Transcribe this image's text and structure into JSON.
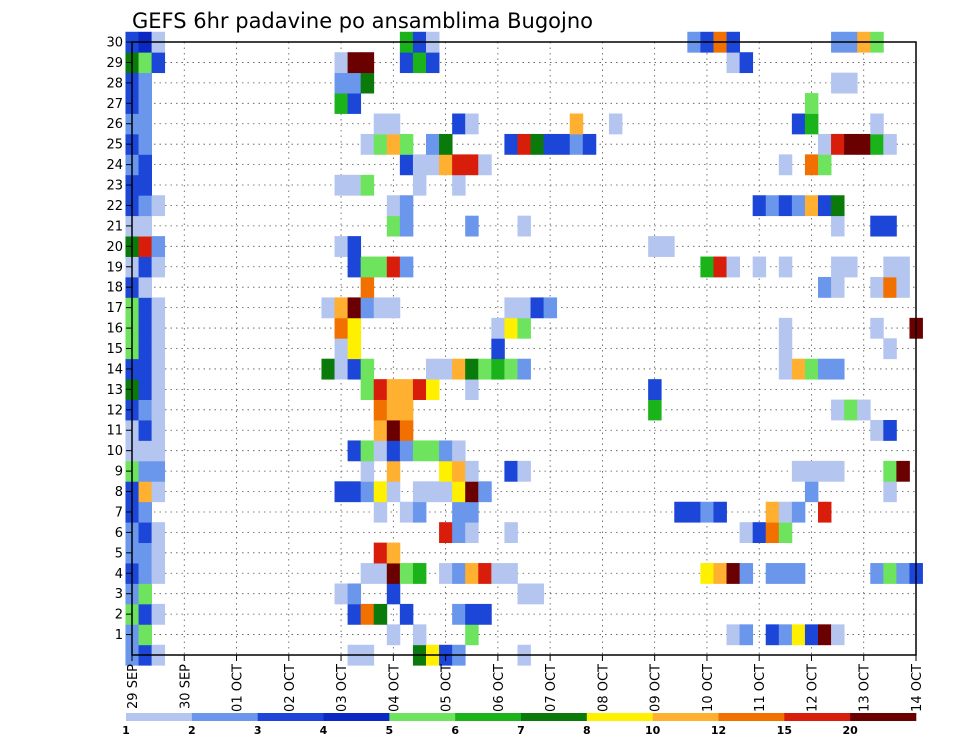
{
  "chart_data": {
    "type": "heatmap",
    "title": "GEFS 6hr padavine po ansamblima Bugojno",
    "xlabel": "",
    "ylabel": "",
    "x_ticks": [
      "29 SEP",
      "30 SEP",
      "01 OCT",
      "02 OCT",
      "03 OCT",
      "04 OCT",
      "05 OCT",
      "06 OCT",
      "07 OCT",
      "08 OCT",
      "09 OCT",
      "10 OCT",
      "11 OCT",
      "12 OCT",
      "13 OCT",
      "14 OCT"
    ],
    "y_ticks": [
      1,
      2,
      3,
      4,
      5,
      6,
      7,
      8,
      9,
      10,
      11,
      12,
      13,
      14,
      15,
      16,
      17,
      18,
      19,
      20,
      21,
      22,
      23,
      24,
      25,
      26,
      27,
      28,
      29,
      30
    ],
    "time_step_hours": 6,
    "xlim_steps": [
      0,
      60
    ],
    "ylim": [
      0,
      30
    ],
    "grid": "dotted",
    "legend_position": "bottom",
    "legend": {
      "labels": [
        "1",
        "2",
        "3",
        "4",
        "5",
        "6",
        "7",
        "8",
        "10",
        "12",
        "15",
        "20"
      ],
      "colors": [
        "#b4c6f0",
        "#6a96ec",
        "#1c46d8",
        "#0a28c4",
        "#6ee45e",
        "#1ab41a",
        "#0a7a0a",
        "#fff000",
        "#ffb030",
        "#f27000",
        "#d81e0a",
        "#6a0000"
      ]
    },
    "cell_values": {
      "30": [
        [
          0,
          3
        ],
        [
          1,
          4
        ],
        [
          2,
          1
        ],
        [
          21,
          6
        ],
        [
          22,
          3
        ],
        [
          23,
          1
        ],
        [
          43,
          2
        ],
        [
          44,
          3
        ],
        [
          45,
          12
        ],
        [
          46,
          3
        ],
        [
          54,
          2
        ],
        [
          55,
          2
        ],
        [
          56,
          10
        ],
        [
          57,
          5
        ]
      ],
      "29": [
        [
          0,
          7
        ],
        [
          1,
          5
        ],
        [
          2,
          3
        ],
        [
          16,
          1
        ],
        [
          17,
          20
        ],
        [
          18,
          20
        ],
        [
          21,
          3
        ],
        [
          22,
          6
        ],
        [
          23,
          3
        ],
        [
          46,
          1
        ],
        [
          47,
          3
        ]
      ],
      "28": [
        [
          0,
          3
        ],
        [
          1,
          2
        ],
        [
          16,
          2
        ],
        [
          17,
          2
        ],
        [
          18,
          7
        ],
        [
          54,
          1
        ],
        [
          55,
          1
        ]
      ],
      "27": [
        [
          0,
          3
        ],
        [
          1,
          2
        ],
        [
          16,
          6
        ],
        [
          17,
          3
        ],
        [
          52,
          5
        ]
      ],
      "26": [
        [
          0,
          2
        ],
        [
          1,
          2
        ],
        [
          19,
          1
        ],
        [
          20,
          1
        ],
        [
          25,
          3
        ],
        [
          26,
          1
        ],
        [
          34,
          10
        ],
        [
          37,
          1
        ],
        [
          51,
          3
        ],
        [
          52,
          6
        ],
        [
          57,
          1
        ]
      ],
      "25": [
        [
          0,
          3
        ],
        [
          1,
          2
        ],
        [
          18,
          1
        ],
        [
          19,
          5
        ],
        [
          20,
          10
        ],
        [
          21,
          5
        ],
        [
          23,
          2
        ],
        [
          24,
          7
        ],
        [
          29,
          3
        ],
        [
          30,
          15
        ],
        [
          31,
          7
        ],
        [
          32,
          3
        ],
        [
          33,
          3
        ],
        [
          34,
          2
        ],
        [
          35,
          3
        ],
        [
          53,
          1
        ],
        [
          54,
          15
        ],
        [
          55,
          20
        ],
        [
          56,
          20
        ],
        [
          57,
          6
        ],
        [
          58,
          1
        ]
      ],
      "24": [
        [
          0,
          2
        ],
        [
          1,
          3
        ],
        [
          21,
          3
        ],
        [
          22,
          1
        ],
        [
          23,
          1
        ],
        [
          24,
          10
        ],
        [
          25,
          15
        ],
        [
          26,
          15
        ],
        [
          27,
          1
        ],
        [
          50,
          1
        ],
        [
          52,
          12
        ],
        [
          53,
          5
        ]
      ],
      "23": [
        [
          0,
          3
        ],
        [
          1,
          3
        ],
        [
          16,
          1
        ],
        [
          17,
          1
        ],
        [
          18,
          5
        ],
        [
          22,
          1
        ],
        [
          25,
          1
        ]
      ],
      "22": [
        [
          0,
          3
        ],
        [
          1,
          2
        ],
        [
          2,
          1
        ],
        [
          20,
          1
        ],
        [
          21,
          2
        ],
        [
          48,
          3
        ],
        [
          49,
          2
        ],
        [
          50,
          3
        ],
        [
          51,
          2
        ],
        [
          52,
          10
        ],
        [
          53,
          3
        ],
        [
          54,
          7
        ]
      ],
      "21": [
        [
          0,
          1
        ],
        [
          1,
          1
        ],
        [
          20,
          5
        ],
        [
          21,
          2
        ],
        [
          26,
          2
        ],
        [
          30,
          1
        ],
        [
          54,
          1
        ],
        [
          57,
          3
        ],
        [
          58,
          3
        ]
      ],
      "20": [
        [
          0,
          7
        ],
        [
          1,
          15
        ],
        [
          2,
          2
        ],
        [
          16,
          1
        ],
        [
          17,
          3
        ],
        [
          40,
          1
        ],
        [
          41,
          1
        ]
      ],
      "19": [
        [
          0,
          1
        ],
        [
          1,
          3
        ],
        [
          2,
          1
        ],
        [
          17,
          3
        ],
        [
          18,
          5
        ],
        [
          19,
          5
        ],
        [
          20,
          15
        ],
        [
          21,
          2
        ],
        [
          44,
          6
        ],
        [
          45,
          15
        ],
        [
          46,
          1
        ],
        [
          48,
          1
        ],
        [
          50,
          1
        ],
        [
          54,
          1
        ],
        [
          55,
          1
        ],
        [
          58,
          1
        ],
        [
          59,
          1
        ]
      ],
      "18": [
        [
          0,
          3
        ],
        [
          1,
          1
        ],
        [
          18,
          12
        ],
        [
          53,
          2
        ],
        [
          54,
          1
        ],
        [
          57,
          1
        ],
        [
          58,
          12
        ],
        [
          59,
          1
        ]
      ],
      "17": [
        [
          0,
          5
        ],
        [
          1,
          3
        ],
        [
          2,
          1
        ],
        [
          15,
          1
        ],
        [
          16,
          10
        ],
        [
          17,
          20
        ],
        [
          18,
          2
        ],
        [
          19,
          1
        ],
        [
          20,
          1
        ],
        [
          29,
          1
        ],
        [
          30,
          1
        ],
        [
          31,
          3
        ],
        [
          32,
          2
        ]
      ],
      "16": [
        [
          0,
          5
        ],
        [
          1,
          3
        ],
        [
          2,
          1
        ],
        [
          16,
          12
        ],
        [
          17,
          8
        ],
        [
          28,
          1
        ],
        [
          29,
          8
        ],
        [
          30,
          5
        ],
        [
          50,
          1
        ],
        [
          57,
          1
        ],
        [
          60,
          20
        ]
      ],
      "15": [
        [
          0,
          5
        ],
        [
          1,
          3
        ],
        [
          2,
          1
        ],
        [
          16,
          1
        ],
        [
          17,
          8
        ],
        [
          28,
          3
        ],
        [
          50,
          1
        ],
        [
          58,
          1
        ]
      ],
      "14": [
        [
          0,
          3
        ],
        [
          1,
          3
        ],
        [
          2,
          1
        ],
        [
          15,
          7
        ],
        [
          16,
          1
        ],
        [
          17,
          3
        ],
        [
          18,
          5
        ],
        [
          23,
          1
        ],
        [
          24,
          1
        ],
        [
          25,
          10
        ],
        [
          26,
          7
        ],
        [
          27,
          5
        ],
        [
          28,
          6
        ],
        [
          29,
          5
        ],
        [
          30,
          2
        ],
        [
          50,
          1
        ],
        [
          51,
          10
        ],
        [
          52,
          5
        ],
        [
          53,
          2
        ],
        [
          54,
          2
        ]
      ],
      "13": [
        [
          0,
          7
        ],
        [
          1,
          3
        ],
        [
          2,
          1
        ],
        [
          18,
          5
        ],
        [
          19,
          15
        ],
        [
          20,
          10
        ],
        [
          21,
          10
        ],
        [
          22,
          15
        ],
        [
          23,
          8
        ],
        [
          26,
          1
        ],
        [
          40,
          3
        ]
      ],
      "12": [
        [
          0,
          3
        ],
        [
          1,
          2
        ],
        [
          2,
          1
        ],
        [
          19,
          12
        ],
        [
          20,
          10
        ],
        [
          21,
          10
        ],
        [
          40,
          6
        ],
        [
          54,
          1
        ],
        [
          55,
          5
        ],
        [
          56,
          1
        ]
      ],
      "11": [
        [
          0,
          1
        ],
        [
          1,
          3
        ],
        [
          2,
          1
        ],
        [
          19,
          10
        ],
        [
          20,
          20
        ],
        [
          21,
          12
        ],
        [
          57,
          1
        ],
        [
          58,
          3
        ]
      ],
      "10": [
        [
          0,
          1
        ],
        [
          1,
          1
        ],
        [
          2,
          1
        ],
        [
          17,
          3
        ],
        [
          18,
          5
        ],
        [
          19,
          1
        ],
        [
          20,
          3
        ],
        [
          21,
          2
        ],
        [
          22,
          5
        ],
        [
          23,
          5
        ],
        [
          24,
          2
        ],
        [
          25,
          1
        ]
      ],
      "9": [
        [
          0,
          5
        ],
        [
          1,
          2
        ],
        [
          2,
          2
        ],
        [
          18,
          1
        ],
        [
          20,
          10
        ],
        [
          24,
          8
        ],
        [
          25,
          10
        ],
        [
          26,
          1
        ],
        [
          29,
          3
        ],
        [
          30,
          1
        ],
        [
          51,
          1
        ],
        [
          52,
          1
        ],
        [
          53,
          1
        ],
        [
          54,
          1
        ],
        [
          58,
          5
        ],
        [
          59,
          20
        ]
      ],
      "8": [
        [
          0,
          3
        ],
        [
          1,
          10
        ],
        [
          2,
          1
        ],
        [
          16,
          3
        ],
        [
          17,
          3
        ],
        [
          18,
          2
        ],
        [
          19,
          8
        ],
        [
          20,
          1
        ],
        [
          22,
          1
        ],
        [
          23,
          1
        ],
        [
          24,
          1
        ],
        [
          25,
          8
        ],
        [
          26,
          20
        ],
        [
          27,
          2
        ],
        [
          52,
          2
        ],
        [
          58,
          1
        ]
      ],
      "7": [
        [
          0,
          3
        ],
        [
          1,
          2
        ],
        [
          19,
          1
        ],
        [
          21,
          1
        ],
        [
          22,
          2
        ],
        [
          25,
          2
        ],
        [
          26,
          2
        ],
        [
          42,
          3
        ],
        [
          43,
          3
        ],
        [
          44,
          2
        ],
        [
          45,
          3
        ],
        [
          49,
          10
        ],
        [
          50,
          1
        ],
        [
          51,
          2
        ],
        [
          53,
          15
        ]
      ],
      "6": [
        [
          0,
          2
        ],
        [
          1,
          3
        ],
        [
          2,
          1
        ],
        [
          24,
          15
        ],
        [
          25,
          2
        ],
        [
          26,
          1
        ],
        [
          29,
          1
        ],
        [
          47,
          1
        ],
        [
          48,
          3
        ],
        [
          49,
          12
        ],
        [
          50,
          5
        ]
      ],
      "5": [
        [
          0,
          2
        ],
        [
          1,
          2
        ],
        [
          2,
          1
        ],
        [
          19,
          15
        ],
        [
          20,
          10
        ]
      ],
      "4": [
        [
          0,
          3
        ],
        [
          1,
          2
        ],
        [
          2,
          1
        ],
        [
          18,
          1
        ],
        [
          19,
          1
        ],
        [
          20,
          20
        ],
        [
          21,
          5
        ],
        [
          22,
          6
        ],
        [
          24,
          1
        ],
        [
          25,
          2
        ],
        [
          26,
          10
        ],
        [
          27,
          15
        ],
        [
          28,
          1
        ],
        [
          29,
          1
        ],
        [
          44,
          8
        ],
        [
          45,
          10
        ],
        [
          46,
          20
        ],
        [
          47,
          2
        ],
        [
          49,
          2
        ],
        [
          50,
          2
        ],
        [
          51,
          2
        ],
        [
          57,
          2
        ],
        [
          58,
          5
        ],
        [
          59,
          2
        ],
        [
          60,
          3
        ]
      ],
      "3": [
        [
          0,
          2
        ],
        [
          1,
          5
        ],
        [
          16,
          1
        ],
        [
          17,
          2
        ],
        [
          20,
          3
        ],
        [
          30,
          1
        ],
        [
          31,
          1
        ]
      ],
      "2": [
        [
          0,
          5
        ],
        [
          1,
          3
        ],
        [
          2,
          1
        ],
        [
          17,
          3
        ],
        [
          18,
          12
        ],
        [
          19,
          7
        ],
        [
          21,
          3
        ],
        [
          25,
          2
        ],
        [
          26,
          3
        ],
        [
          27,
          3
        ]
      ],
      "1": [
        [
          0,
          2
        ],
        [
          1,
          5
        ],
        [
          20,
          1
        ],
        [
          22,
          1
        ],
        [
          26,
          5
        ],
        [
          46,
          1
        ],
        [
          47,
          2
        ],
        [
          49,
          3
        ],
        [
          50,
          2
        ],
        [
          51,
          8
        ],
        [
          52,
          3
        ],
        [
          53,
          20
        ],
        [
          54,
          1
        ]
      ],
      "0": [
        [
          0,
          2
        ],
        [
          1,
          3
        ],
        [
          2,
          1
        ],
        [
          17,
          1
        ],
        [
          18,
          1
        ],
        [
          22,
          7
        ],
        [
          23,
          8
        ],
        [
          24,
          3
        ],
        [
          25,
          2
        ],
        [
          30,
          1
        ]
      ]
    }
  }
}
